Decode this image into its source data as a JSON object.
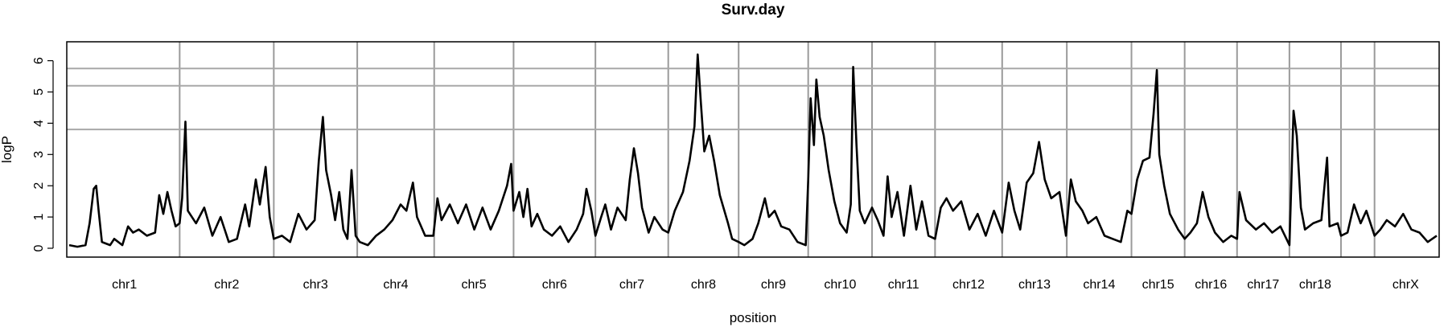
{
  "chart_data": {
    "type": "line",
    "title": "Surv.day",
    "xlabel": "position",
    "ylabel": "logP",
    "ylim": [
      0,
      6.4
    ],
    "yticks": [
      "0",
      "1",
      "2",
      "3",
      "4",
      "5",
      "6"
    ],
    "threshold_lines": [
      3.8,
      5.2,
      5.75
    ],
    "grid": "chromosome boundaries",
    "chromosomes": [
      {
        "name": "chr1",
        "start": 0,
        "end": 1.35
      },
      {
        "name": "chr2",
        "start": 1.35,
        "end": 2.5
      },
      {
        "name": "chr3",
        "start": 2.5,
        "end": 3.52
      },
      {
        "name": "chr4",
        "start": 3.52,
        "end": 4.46
      },
      {
        "name": "chr5",
        "start": 4.46,
        "end": 5.43
      },
      {
        "name": "chr6",
        "start": 5.43,
        "end": 6.43
      },
      {
        "name": "chr7",
        "start": 6.43,
        "end": 7.32
      },
      {
        "name": "chr8",
        "start": 7.32,
        "end": 8.18
      },
      {
        "name": "chr9",
        "start": 8.18,
        "end": 9.03
      },
      {
        "name": "chr10",
        "start": 9.03,
        "end": 9.81
      },
      {
        "name": "chr11",
        "start": 9.81,
        "end": 10.58
      },
      {
        "name": "chr12",
        "start": 10.58,
        "end": 11.4
      },
      {
        "name": "chr13",
        "start": 11.4,
        "end": 12.19
      },
      {
        "name": "chr14",
        "start": 12.19,
        "end": 12.98
      },
      {
        "name": "chr15",
        "start": 12.98,
        "end": 13.63
      },
      {
        "name": "chr16",
        "start": 13.63,
        "end": 14.27
      },
      {
        "name": "chr17",
        "start": 14.27,
        "end": 14.91
      },
      {
        "name": "chr18",
        "start": 14.91,
        "end": 15.54
      },
      {
        "name": "",
        "start": 15.54,
        "end": 15.95
      },
      {
        "name": "chrX",
        "start": 15.95,
        "end": 16.71
      }
    ],
    "series": [
      {
        "color": "#000000",
        "points": [
          [
            0.0,
            0.1
          ],
          [
            0.1,
            0.05
          ],
          [
            0.2,
            0.1
          ],
          [
            0.25,
            0.8
          ],
          [
            0.3,
            1.9
          ],
          [
            0.33,
            2.0
          ],
          [
            0.36,
            1.2
          ],
          [
            0.4,
            0.2
          ],
          [
            0.5,
            0.1
          ],
          [
            0.55,
            0.3
          ],
          [
            0.65,
            0.1
          ],
          [
            0.72,
            0.7
          ],
          [
            0.78,
            0.5
          ],
          [
            0.85,
            0.6
          ],
          [
            0.95,
            0.4
          ],
          [
            1.05,
            0.5
          ],
          [
            1.1,
            1.7
          ],
          [
            1.15,
            1.1
          ],
          [
            1.2,
            1.8
          ],
          [
            1.25,
            1.2
          ],
          [
            1.3,
            0.7
          ],
          [
            1.35,
            0.8
          ],
          [
            1.38,
            1.6
          ],
          [
            1.42,
            4.05
          ],
          [
            1.45,
            1.2
          ],
          [
            1.55,
            0.8
          ],
          [
            1.65,
            1.3
          ],
          [
            1.75,
            0.4
          ],
          [
            1.85,
            1.0
          ],
          [
            1.95,
            0.2
          ],
          [
            2.05,
            0.3
          ],
          [
            2.15,
            1.4
          ],
          [
            2.2,
            0.7
          ],
          [
            2.28,
            2.2
          ],
          [
            2.33,
            1.4
          ],
          [
            2.4,
            2.6
          ],
          [
            2.45,
            1.0
          ],
          [
            2.5,
            0.3
          ],
          [
            2.6,
            0.4
          ],
          [
            2.7,
            0.2
          ],
          [
            2.8,
            1.1
          ],
          [
            2.9,
            0.6
          ],
          [
            3.0,
            0.9
          ],
          [
            3.05,
            2.8
          ],
          [
            3.1,
            4.2
          ],
          [
            3.14,
            2.5
          ],
          [
            3.2,
            1.7
          ],
          [
            3.25,
            0.9
          ],
          [
            3.3,
            1.8
          ],
          [
            3.35,
            0.6
          ],
          [
            3.4,
            0.3
          ],
          [
            3.45,
            2.5
          ],
          [
            3.5,
            0.4
          ],
          [
            3.55,
            0.2
          ],
          [
            3.65,
            0.1
          ],
          [
            3.75,
            0.4
          ],
          [
            3.85,
            0.6
          ],
          [
            3.95,
            0.9
          ],
          [
            4.05,
            1.4
          ],
          [
            4.12,
            1.2
          ],
          [
            4.2,
            2.1
          ],
          [
            4.25,
            1.0
          ],
          [
            4.35,
            0.4
          ],
          [
            4.45,
            0.4
          ],
          [
            4.5,
            1.6
          ],
          [
            4.55,
            0.9
          ],
          [
            4.65,
            1.4
          ],
          [
            4.75,
            0.8
          ],
          [
            4.85,
            1.4
          ],
          [
            4.95,
            0.6
          ],
          [
            5.05,
            1.3
          ],
          [
            5.15,
            0.6
          ],
          [
            5.25,
            1.2
          ],
          [
            5.35,
            2.0
          ],
          [
            5.4,
            2.7
          ],
          [
            5.43,
            1.2
          ],
          [
            5.5,
            1.8
          ],
          [
            5.55,
            1.0
          ],
          [
            5.6,
            1.9
          ],
          [
            5.65,
            0.7
          ],
          [
            5.72,
            1.1
          ],
          [
            5.8,
            0.6
          ],
          [
            5.9,
            0.4
          ],
          [
            6.0,
            0.7
          ],
          [
            6.1,
            0.2
          ],
          [
            6.2,
            0.6
          ],
          [
            6.28,
            1.1
          ],
          [
            6.32,
            1.9
          ],
          [
            6.38,
            1.2
          ],
          [
            6.43,
            0.4
          ],
          [
            6.5,
            1.0
          ],
          [
            6.55,
            1.4
          ],
          [
            6.62,
            0.6
          ],
          [
            6.7,
            1.3
          ],
          [
            6.8,
            0.9
          ],
          [
            6.85,
            2.2
          ],
          [
            6.9,
            3.2
          ],
          [
            6.95,
            2.4
          ],
          [
            7.0,
            1.3
          ],
          [
            7.08,
            0.5
          ],
          [
            7.15,
            1.0
          ],
          [
            7.25,
            0.6
          ],
          [
            7.32,
            0.5
          ],
          [
            7.4,
            1.2
          ],
          [
            7.5,
            1.8
          ],
          [
            7.58,
            2.8
          ],
          [
            7.64,
            3.9
          ],
          [
            7.68,
            6.2
          ],
          [
            7.72,
            4.6
          ],
          [
            7.76,
            3.1
          ],
          [
            7.82,
            3.6
          ],
          [
            7.88,
            2.8
          ],
          [
            7.95,
            1.7
          ],
          [
            8.05,
            0.8
          ],
          [
            8.1,
            0.3
          ],
          [
            8.18,
            0.2
          ],
          [
            8.25,
            0.1
          ],
          [
            8.35,
            0.3
          ],
          [
            8.42,
            0.8
          ],
          [
            8.5,
            1.6
          ],
          [
            8.55,
            1.0
          ],
          [
            8.62,
            1.2
          ],
          [
            8.7,
            0.7
          ],
          [
            8.8,
            0.6
          ],
          [
            8.9,
            0.2
          ],
          [
            9.0,
            0.1
          ],
          [
            9.03,
            2.2
          ],
          [
            9.06,
            4.8
          ],
          [
            9.1,
            3.3
          ],
          [
            9.13,
            5.4
          ],
          [
            9.17,
            4.2
          ],
          [
            9.22,
            3.6
          ],
          [
            9.28,
            2.5
          ],
          [
            9.35,
            1.5
          ],
          [
            9.42,
            0.8
          ],
          [
            9.5,
            0.5
          ],
          [
            9.55,
            1.4
          ],
          [
            9.58,
            5.8
          ],
          [
            9.62,
            3.3
          ],
          [
            9.66,
            1.2
          ],
          [
            9.72,
            0.8
          ],
          [
            9.81,
            1.3
          ],
          [
            9.88,
            0.9
          ],
          [
            9.95,
            0.4
          ],
          [
            10.0,
            2.3
          ],
          [
            10.05,
            1.0
          ],
          [
            10.12,
            1.8
          ],
          [
            10.2,
            0.4
          ],
          [
            10.28,
            2.0
          ],
          [
            10.35,
            0.6
          ],
          [
            10.42,
            1.5
          ],
          [
            10.5,
            0.4
          ],
          [
            10.58,
            0.3
          ],
          [
            10.65,
            1.3
          ],
          [
            10.72,
            1.6
          ],
          [
            10.8,
            1.2
          ],
          [
            10.9,
            1.5
          ],
          [
            11.0,
            0.6
          ],
          [
            11.1,
            1.1
          ],
          [
            11.2,
            0.4
          ],
          [
            11.3,
            1.2
          ],
          [
            11.4,
            0.5
          ],
          [
            11.48,
            2.1
          ],
          [
            11.55,
            1.2
          ],
          [
            11.62,
            0.6
          ],
          [
            11.7,
            2.1
          ],
          [
            11.78,
            2.4
          ],
          [
            11.85,
            3.4
          ],
          [
            11.92,
            2.2
          ],
          [
            12.0,
            1.6
          ],
          [
            12.1,
            1.8
          ],
          [
            12.18,
            0.4
          ],
          [
            12.24,
            2.2
          ],
          [
            12.3,
            1.5
          ],
          [
            12.38,
            1.2
          ],
          [
            12.45,
            0.8
          ],
          [
            12.55,
            1.0
          ],
          [
            12.65,
            0.4
          ],
          [
            12.75,
            0.3
          ],
          [
            12.85,
            0.2
          ],
          [
            12.93,
            1.2
          ],
          [
            12.98,
            1.1
          ],
          [
            13.05,
            2.2
          ],
          [
            13.12,
            2.8
          ],
          [
            13.2,
            2.9
          ],
          [
            13.25,
            4.3
          ],
          [
            13.29,
            5.7
          ],
          [
            13.32,
            3.0
          ],
          [
            13.38,
            2.0
          ],
          [
            13.45,
            1.1
          ],
          [
            13.55,
            0.6
          ],
          [
            13.63,
            0.3
          ],
          [
            13.7,
            0.5
          ],
          [
            13.78,
            0.8
          ],
          [
            13.85,
            1.8
          ],
          [
            13.92,
            1.0
          ],
          [
            14.0,
            0.5
          ],
          [
            14.1,
            0.2
          ],
          [
            14.2,
            0.4
          ],
          [
            14.27,
            0.3
          ],
          [
            14.3,
            1.8
          ],
          [
            14.38,
            0.9
          ],
          [
            14.5,
            0.6
          ],
          [
            14.6,
            0.8
          ],
          [
            14.7,
            0.5
          ],
          [
            14.8,
            0.7
          ],
          [
            14.91,
            0.1
          ],
          [
            14.96,
            4.4
          ],
          [
            15.0,
            3.6
          ],
          [
            15.05,
            1.3
          ],
          [
            15.1,
            0.6
          ],
          [
            15.2,
            0.8
          ],
          [
            15.3,
            0.9
          ],
          [
            15.37,
            2.9
          ],
          [
            15.4,
            0.7
          ],
          [
            15.5,
            0.8
          ],
          [
            15.54,
            0.4
          ],
          [
            15.62,
            0.5
          ],
          [
            15.7,
            1.4
          ],
          [
            15.78,
            0.8
          ],
          [
            15.85,
            1.2
          ],
          [
            15.95,
            0.4
          ],
          [
            16.02,
            0.6
          ],
          [
            16.1,
            0.9
          ],
          [
            16.2,
            0.7
          ],
          [
            16.3,
            1.1
          ],
          [
            16.4,
            0.6
          ],
          [
            16.5,
            0.5
          ],
          [
            16.6,
            0.2
          ],
          [
            16.71,
            0.4
          ]
        ]
      }
    ]
  }
}
